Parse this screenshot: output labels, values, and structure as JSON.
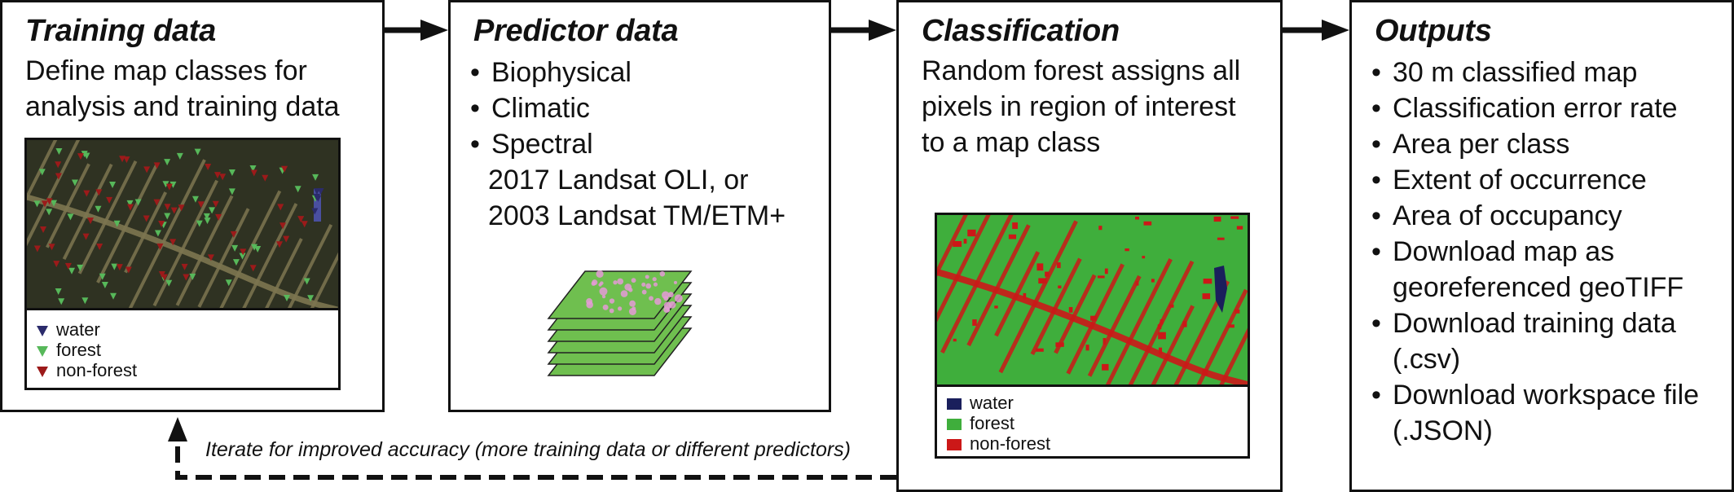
{
  "colors": {
    "water": "#1a1f5c",
    "forest": "#3fae3c",
    "non_forest": "#cc1818",
    "water_marker": "#2b2b6b",
    "forest_marker": "#57b85a",
    "non_forest_marker": "#9c1a1a",
    "satellite_bg": "#2f3222"
  },
  "training": {
    "title": "Training data",
    "description": "Define map classes for\nanalysis and training data",
    "legend": [
      {
        "label": "water",
        "color_key": "water_marker"
      },
      {
        "label": "forest",
        "color_key": "forest_marker"
      },
      {
        "label": "non-forest",
        "color_key": "non_forest_marker"
      }
    ]
  },
  "predictor": {
    "title": "Predictor data",
    "bullets": [
      "Biophysical",
      "Climatic",
      "Spectral"
    ],
    "spectral_detail": "2017 Landsat OLI, or\n2003 Landsat TM/ETM+"
  },
  "classification": {
    "title": "Classification",
    "description": "Random forest assigns all\npixels in region of interest\nto a map class",
    "legend": [
      {
        "label": "water",
        "color_key": "water"
      },
      {
        "label": "forest",
        "color_key": "forest"
      },
      {
        "label": "non-forest",
        "color_key": "non_forest"
      }
    ]
  },
  "outputs": {
    "title": "Outputs",
    "bullets": [
      "30 m classified map",
      "Classification error rate",
      "Area per class",
      "Extent of occurrence",
      "Area of occupancy",
      "Download map as\ngeoreferenced geoTIFF",
      "Download training data\n(.csv)",
      "Download workspace file\n(.JSON)"
    ]
  },
  "feedback_loop": {
    "label": "Iterate for improved accuracy (more training data or different predictors)"
  }
}
